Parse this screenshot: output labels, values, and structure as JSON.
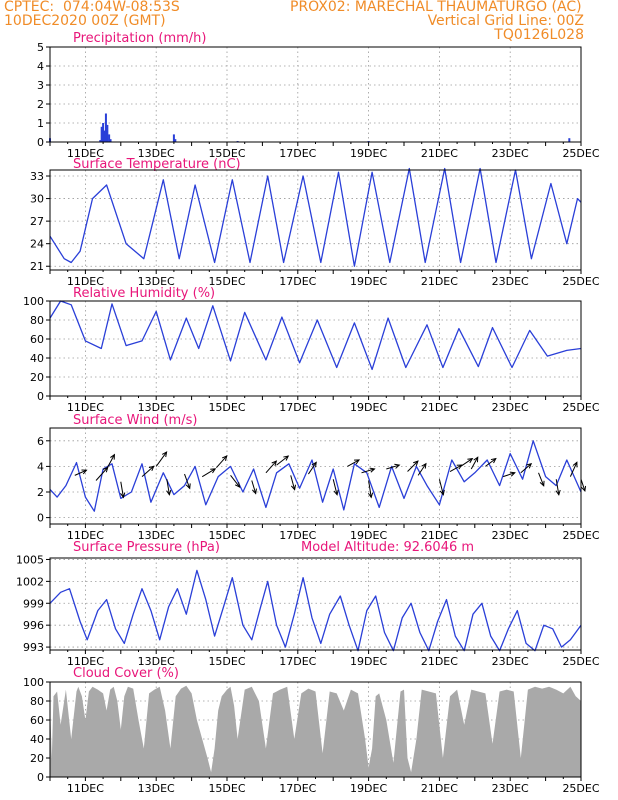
{
  "header": {
    "line1_left": "CPTEC:  074:04W-08:53S",
    "line1_right": "PROX02: MARECHAL THAUMATURGO (AC)",
    "line2_left": "10DEC2020 00Z (GMT)",
    "line2_right": "Vertical Grid Line: 00Z",
    "line3_right": "TQ0126L028"
  },
  "colors": {
    "header": "#f08c28",
    "title": "#e8167a",
    "line": "#2a3fd8",
    "bar": "#2a3fd8",
    "cloud": "#a9a9a9",
    "arrow": "#000000"
  },
  "x_axis": {
    "range_days": [
      0,
      15
    ],
    "tick_labels": [
      "11DEC",
      "13DEC",
      "15DEC",
      "17DEC",
      "19DEC",
      "21DEC",
      "23DEC",
      "25DEC"
    ]
  },
  "model_altitude_text": "Model Altitude: 92.6046 m",
  "chart_data": [
    {
      "id": "precip",
      "type": "bar",
      "title": "Precipitation (mm/h)",
      "ylim": [
        0,
        5
      ],
      "yticks": [
        0,
        1,
        2,
        3,
        4,
        5
      ],
      "grid": true,
      "bars": [
        [
          0.0,
          0.2
        ],
        [
          1.42,
          0.1
        ],
        [
          1.46,
          0.8
        ],
        [
          1.5,
          1.0
        ],
        [
          1.54,
          0.6
        ],
        [
          1.58,
          1.5
        ],
        [
          1.62,
          0.9
        ],
        [
          1.67,
          0.4
        ],
        [
          1.71,
          0.15
        ],
        [
          3.5,
          0.4
        ],
        [
          3.54,
          0.15
        ],
        [
          5.3,
          0.05
        ],
        [
          9.0,
          0.05
        ],
        [
          14.67,
          0.2
        ]
      ]
    },
    {
      "id": "temp",
      "type": "line",
      "title": "Surface Temperature (nC)",
      "ylim": [
        20.5,
        33.8
      ],
      "yticks": [
        21,
        24,
        27,
        30,
        33
      ],
      "grid": true,
      "x": [
        0,
        0.4,
        0.6,
        0.85,
        1.2,
        1.6,
        2.15,
        2.65,
        3.2,
        3.65,
        4.1,
        4.65,
        5.15,
        5.65,
        6.15,
        6.6,
        7.15,
        7.65,
        8.15,
        8.6,
        9.1,
        9.6,
        10.15,
        10.6,
        11.15,
        11.6,
        12.15,
        12.6,
        13.15,
        13.6,
        14.15,
        14.6,
        14.9,
        15.0
      ],
      "y": [
        25,
        22,
        21.5,
        23,
        30,
        31.8,
        24,
        22,
        32.5,
        22,
        31.8,
        21.5,
        32.5,
        21.5,
        33,
        21.5,
        33,
        21.5,
        33.5,
        21,
        33.5,
        21.5,
        34,
        21.5,
        34,
        21.5,
        34,
        21.5,
        33.8,
        22,
        32,
        24,
        30,
        29.5
      ]
    },
    {
      "id": "rh",
      "type": "line",
      "title": "Relative Humidity (%)",
      "ylim": [
        0,
        100
      ],
      "yticks": [
        0,
        20,
        40,
        60,
        80,
        100
      ],
      "grid": true,
      "x": [
        0,
        0.3,
        0.6,
        1.0,
        1.45,
        1.75,
        2.15,
        2.6,
        3.0,
        3.4,
        3.85,
        4.2,
        4.6,
        5.1,
        5.5,
        6.1,
        6.55,
        7.05,
        7.55,
        8.1,
        8.6,
        9.1,
        9.55,
        10.05,
        10.65,
        11.1,
        11.55,
        12.1,
        12.5,
        13.05,
        13.55,
        14.05,
        14.6,
        15.0
      ],
      "y": [
        82,
        100,
        96,
        58,
        50,
        97,
        53,
        58,
        89,
        38,
        82,
        50,
        95,
        37,
        88,
        38,
        83,
        35,
        80,
        30,
        77,
        28,
        82,
        30,
        75,
        30,
        71,
        31,
        72,
        30,
        69,
        42,
        48,
        50
      ]
    },
    {
      "id": "wind",
      "type": "line",
      "title": "Surface Wind (m/s)",
      "ylim": [
        -0.5,
        7
      ],
      "yticks": [
        0,
        2,
        4,
        6
      ],
      "grid": true,
      "x": [
        0,
        0.2,
        0.45,
        0.75,
        1.0,
        1.25,
        1.5,
        1.75,
        2.0,
        2.3,
        2.6,
        2.85,
        3.2,
        3.5,
        3.8,
        4.1,
        4.4,
        4.75,
        5.1,
        5.45,
        5.75,
        6.1,
        6.4,
        6.75,
        7.05,
        7.4,
        7.7,
        8.0,
        8.3,
        8.6,
        8.95,
        9.3,
        9.65,
        10.0,
        10.35,
        10.65,
        11.0,
        11.35,
        11.7,
        12.0,
        12.35,
        12.7,
        13.0,
        13.35,
        13.65,
        14.0,
        14.3,
        14.6,
        15.0
      ],
      "y": [
        2.2,
        1.6,
        2.5,
        4.3,
        1.6,
        0.5,
        3.8,
        4.2,
        1.5,
        2.0,
        4.2,
        1.2,
        3.5,
        1.8,
        2.5,
        4.0,
        1.0,
        3.2,
        4.0,
        2.0,
        3.8,
        0.8,
        3.5,
        4.2,
        2.3,
        4.5,
        1.2,
        3.8,
        0.6,
        4.2,
        3.5,
        0.8,
        4.0,
        1.5,
        4.0,
        2.5,
        1.0,
        4.5,
        2.8,
        3.5,
        4.5,
        2.5,
        5.0,
        3.0,
        6.0,
        3.2,
        2.5,
        4.5,
        2.0
      ]
    },
    {
      "id": "wind_arrows",
      "type": "vector",
      "title": "",
      "points": [
        [
          0.7,
          3.3,
          0.9,
          0.4
        ],
        [
          1.3,
          2.9,
          0.9,
          1.0
        ],
        [
          1.6,
          3.8,
          0.6,
          1.1
        ],
        [
          2.0,
          2.8,
          0.2,
          -1.2
        ],
        [
          2.6,
          3.2,
          0.9,
          0.8
        ],
        [
          3.0,
          4.0,
          0.8,
          1.1
        ],
        [
          3.3,
          3.0,
          0.2,
          -1.2
        ],
        [
          3.8,
          3.4,
          0.4,
          -1.1
        ],
        [
          4.3,
          3.2,
          1.0,
          0.6
        ],
        [
          4.7,
          3.9,
          0.8,
          0.9
        ],
        [
          5.1,
          3.3,
          0.7,
          -0.9
        ],
        [
          5.7,
          2.9,
          0.3,
          -1.0
        ],
        [
          6.1,
          3.5,
          0.8,
          0.9
        ],
        [
          6.4,
          4.1,
          0.9,
          0.7
        ],
        [
          6.8,
          3.3,
          0.3,
          -1.1
        ],
        [
          7.3,
          3.4,
          0.6,
          0.9
        ],
        [
          8.0,
          3.0,
          0.3,
          -1.2
        ],
        [
          8.4,
          4.0,
          0.9,
          0.5
        ],
        [
          8.8,
          3.5,
          1.0,
          0.3
        ],
        [
          9.0,
          2.9,
          0.2,
          -1.3
        ],
        [
          9.5,
          3.8,
          1.0,
          0.3
        ],
        [
          10.1,
          3.6,
          0.8,
          0.8
        ],
        [
          10.4,
          3.3,
          0.6,
          0.9
        ],
        [
          11.0,
          3.0,
          0.3,
          -1.2
        ],
        [
          11.3,
          3.6,
          0.9,
          0.5
        ],
        [
          11.6,
          4.0,
          0.9,
          0.6
        ],
        [
          11.9,
          3.8,
          0.5,
          0.9
        ],
        [
          12.3,
          4.0,
          0.8,
          0.6
        ],
        [
          12.8,
          3.2,
          0.9,
          0.3
        ],
        [
          13.3,
          3.5,
          0.8,
          0.7
        ],
        [
          13.8,
          3.5,
          0.4,
          -1.0
        ],
        [
          14.3,
          3.0,
          0.2,
          -1.2
        ],
        [
          14.7,
          3.2,
          0.5,
          1.1
        ],
        [
          15.0,
          3.0,
          0.3,
          -0.9
        ]
      ]
    },
    {
      "id": "pressure",
      "type": "line",
      "title": "Surface Pressure (hPa)",
      "ylim": [
        992.6,
        1005.2
      ],
      "yticks": [
        993,
        996,
        999,
        1002,
        1005
      ],
      "grid": true,
      "x": [
        0,
        0.3,
        0.55,
        0.85,
        1.05,
        1.35,
        1.6,
        1.85,
        2.1,
        2.35,
        2.6,
        2.85,
        3.1,
        3.35,
        3.6,
        3.85,
        4.15,
        4.4,
        4.65,
        4.9,
        5.15,
        5.45,
        5.7,
        5.95,
        6.15,
        6.4,
        6.65,
        6.9,
        7.15,
        7.4,
        7.65,
        7.9,
        8.2,
        8.45,
        8.7,
        8.95,
        9.2,
        9.45,
        9.7,
        9.95,
        10.2,
        10.45,
        10.7,
        10.95,
        11.2,
        11.45,
        11.7,
        11.95,
        12.2,
        12.45,
        12.7,
        12.95,
        13.2,
        13.45,
        13.7,
        13.95,
        14.2,
        14.45,
        14.7,
        15.0
      ],
      "y": [
        999.0,
        1000.5,
        1001.0,
        996.5,
        994.0,
        998.0,
        999.5,
        995.5,
        993.5,
        997.5,
        1001.0,
        998.0,
        994.0,
        998.5,
        1001.0,
        997.5,
        1003.5,
        999.5,
        994.5,
        998.5,
        1002.5,
        996.0,
        994.0,
        998.5,
        1002.0,
        996.0,
        993.0,
        997.5,
        1002.5,
        997.0,
        993.5,
        997.5,
        1000.0,
        996.0,
        992.5,
        998.0,
        1000.0,
        995.0,
        992.5,
        997.0,
        999.0,
        995.0,
        992.5,
        996.5,
        999.5,
        994.5,
        992.5,
        997.5,
        999.0,
        994.5,
        992.5,
        995.5,
        998.0,
        993.5,
        992.5,
        996.0,
        995.5,
        993.0,
        994.0,
        996.0
      ]
    },
    {
      "id": "cloud",
      "type": "area",
      "title": "Cloud Cover (%)",
      "ylim": [
        0,
        100
      ],
      "yticks": [
        0,
        20,
        40,
        60,
        80,
        100
      ],
      "grid": true,
      "x": [
        0,
        0.05,
        0.1,
        0.2,
        0.3,
        0.45,
        0.6,
        0.75,
        0.8,
        0.9,
        1.0,
        1.1,
        1.2,
        1.35,
        1.5,
        1.6,
        1.7,
        1.8,
        1.9,
        2.0,
        2.1,
        2.2,
        2.35,
        2.5,
        2.65,
        2.8,
        2.95,
        3.1,
        3.25,
        3.4,
        3.55,
        3.7,
        3.85,
        4.0,
        4.15,
        4.3,
        4.45,
        4.55,
        4.65,
        4.75,
        4.85,
        5.0,
        5.1,
        5.2,
        5.3,
        5.5,
        5.7,
        5.9,
        6.1,
        6.3,
        6.5,
        6.7,
        6.9,
        7.1,
        7.3,
        7.5,
        7.7,
        7.9,
        8.1,
        8.3,
        8.5,
        8.7,
        8.9,
        9.0,
        9.1,
        9.2,
        9.3,
        9.5,
        9.7,
        9.9,
        10.0,
        10.1,
        10.2,
        10.35,
        10.5,
        10.7,
        10.9,
        11.1,
        11.3,
        11.5,
        11.7,
        11.9,
        12.1,
        12.3,
        12.5,
        12.7,
        12.9,
        13.1,
        13.3,
        13.5,
        13.7,
        13.9,
        14.1,
        14.3,
        14.5,
        14.7,
        14.85,
        15.0
      ],
      "y": [
        80,
        20,
        85,
        90,
        55,
        92,
        40,
        90,
        95,
        85,
        60,
        90,
        95,
        92,
        88,
        70,
        92,
        95,
        80,
        50,
        85,
        95,
        93,
        60,
        30,
        88,
        92,
        95,
        70,
        30,
        85,
        93,
        96,
        88,
        60,
        40,
        20,
        5,
        30,
        70,
        85,
        92,
        95,
        75,
        40,
        92,
        95,
        80,
        30,
        88,
        92,
        95,
        40,
        88,
        93,
        90,
        25,
        90,
        88,
        70,
        92,
        88,
        40,
        10,
        30,
        85,
        88,
        60,
        15,
        90,
        92,
        20,
        5,
        40,
        92,
        90,
        88,
        20,
        85,
        92,
        55,
        92,
        90,
        88,
        35,
        90,
        92,
        90,
        20,
        92,
        95,
        93,
        95,
        92,
        88,
        95,
        85,
        80
      ]
    }
  ]
}
